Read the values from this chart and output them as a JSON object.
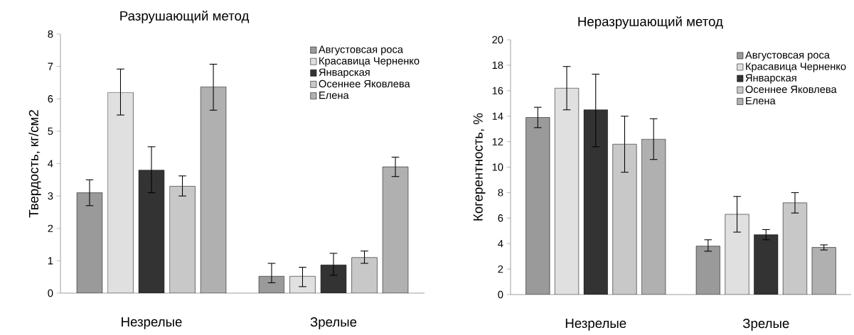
{
  "chart_data": [
    {
      "type": "bar",
      "title": "Разрушающий метод",
      "ylabel": "Твердость, кг/см2",
      "categories": [
        "Незрелые",
        "Зрелые"
      ],
      "ylim": [
        0,
        8
      ],
      "yticks": [
        0,
        1,
        2,
        3,
        4,
        5,
        6,
        7,
        8
      ],
      "legend": "top right",
      "series": [
        {
          "name": "Августовсая роса",
          "color": "#9a9a9a",
          "values": [
            3.1,
            0.52
          ],
          "errors": [
            [
              2.7,
              3.5
            ],
            [
              0.32,
              0.92
            ]
          ]
        },
        {
          "name": "Красавица Черненко",
          "color": "#e0e0e0",
          "values": [
            6.2,
            0.52
          ],
          "errors": [
            [
              5.5,
              6.92
            ],
            [
              0.2,
              0.8
            ]
          ]
        },
        {
          "name": "Январская",
          "color": "#333333",
          "values": [
            3.8,
            0.87
          ],
          "errors": [
            [
              3.1,
              4.52
            ],
            [
              0.55,
              1.23
            ]
          ]
        },
        {
          "name": "Осеннее Яковлева",
          "color": "#c8c8c8",
          "values": [
            3.3,
            1.1
          ],
          "errors": [
            [
              3.0,
              3.62
            ],
            [
              0.92,
              1.3
            ]
          ]
        },
        {
          "name": "Елена",
          "color": "#b0b0b0",
          "values": [
            6.37,
            3.9
          ],
          "errors": [
            [
              5.65,
              7.07
            ],
            [
              3.6,
              4.2
            ]
          ]
        }
      ]
    },
    {
      "type": "bar",
      "title": "Неразрушающий метод",
      "ylabel": "Когерентность, %",
      "categories": [
        "Незрелые",
        "Зрелые"
      ],
      "ylim": [
        0,
        20
      ],
      "yticks": [
        0,
        2,
        4,
        6,
        8,
        10,
        12,
        14,
        16,
        18,
        20
      ],
      "legend": "top right",
      "series": [
        {
          "name": "Августовсая роса",
          "color": "#9a9a9a",
          "values": [
            13.9,
            3.8
          ],
          "errors": [
            [
              13.1,
              14.7
            ],
            [
              3.4,
              4.3
            ]
          ]
        },
        {
          "name": "Красавица Черненко",
          "color": "#e0e0e0",
          "values": [
            16.2,
            6.3
          ],
          "errors": [
            [
              14.5,
              17.9
            ],
            [
              4.9,
              7.7
            ]
          ]
        },
        {
          "name": "Январская",
          "color": "#333333",
          "values": [
            14.5,
            4.7
          ],
          "errors": [
            [
              11.6,
              17.3
            ],
            [
              4.3,
              5.1
            ]
          ]
        },
        {
          "name": "Осеннее Яковлева",
          "color": "#c8c8c8",
          "values": [
            11.8,
            7.2
          ],
          "errors": [
            [
              9.6,
              14.0
            ],
            [
              6.4,
              8.0
            ]
          ]
        },
        {
          "name": "Елена",
          "color": "#b0b0b0",
          "values": [
            12.2,
            3.7
          ],
          "errors": [
            [
              10.6,
              13.8
            ],
            [
              3.5,
              3.9
            ]
          ]
        }
      ]
    }
  ]
}
